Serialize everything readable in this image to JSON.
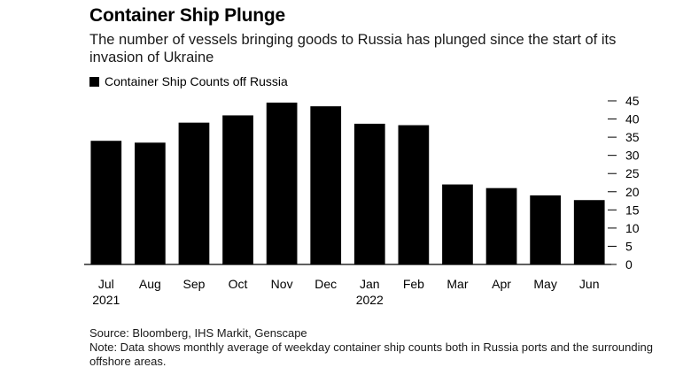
{
  "chart_data": {
    "type": "bar",
    "title": "Container Ship Plunge",
    "subtitle": "The number of vessels bringing goods to Russia has plunged since the start of its invasion of Ukraine",
    "legend": [
      {
        "name": "Container Ship Counts off Russia",
        "color": "#000000"
      }
    ],
    "categories": [
      "Jul",
      "Aug",
      "Sep",
      "Oct",
      "Nov",
      "Dec",
      "Jan",
      "Feb",
      "Mar",
      "Apr",
      "May",
      "Jun"
    ],
    "year_labels": {
      "Jul": "2021",
      "Jan": "2022"
    },
    "series": [
      {
        "name": "Container Ship Counts off Russia",
        "values": [
          34,
          33.5,
          39,
          41,
          44.5,
          43.5,
          38.7,
          38.3,
          22,
          21,
          19,
          17.7
        ]
      }
    ],
    "ylim": [
      0,
      45
    ],
    "yticks": [
      0,
      5,
      10,
      15,
      20,
      25,
      30,
      35,
      40,
      45
    ],
    "y_axis_side": "right",
    "bar_color": "#000000",
    "grid": false
  },
  "footer": {
    "source": "Source: Bloomberg, IHS Markit, Genscape",
    "note": "Note: Data shows monthly average of weekday container ship counts both in Russia ports and the surrounding offshore areas."
  }
}
